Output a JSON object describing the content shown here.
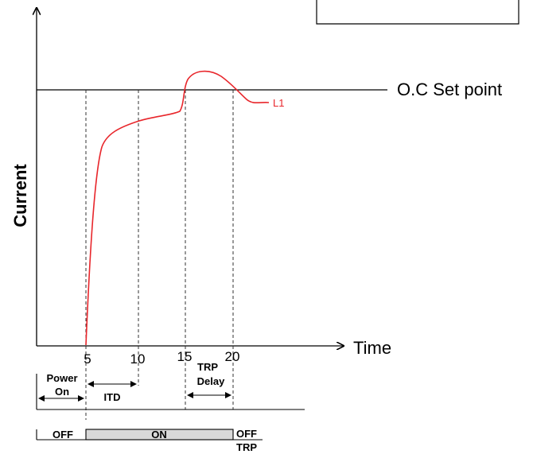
{
  "axes": {
    "y_label": "Current",
    "x_label": "Time"
  },
  "x_ticks": [
    "5",
    "10",
    "15",
    "20"
  ],
  "setpoint_label": "O.C Set point",
  "curve_label": "L1",
  "intervals": {
    "power_on": [
      "Power",
      "On"
    ],
    "itd": "ITD",
    "trp_delay": [
      "TRP",
      "Delay"
    ]
  },
  "state_bar": {
    "off": "OFF",
    "on": "ON",
    "off_end": "OFF",
    "trp": "TRP"
  },
  "colors": {
    "curve": "#e8262b",
    "on_fill": "#d9d9d9",
    "line": "#000000",
    "guide": "#333333"
  }
}
